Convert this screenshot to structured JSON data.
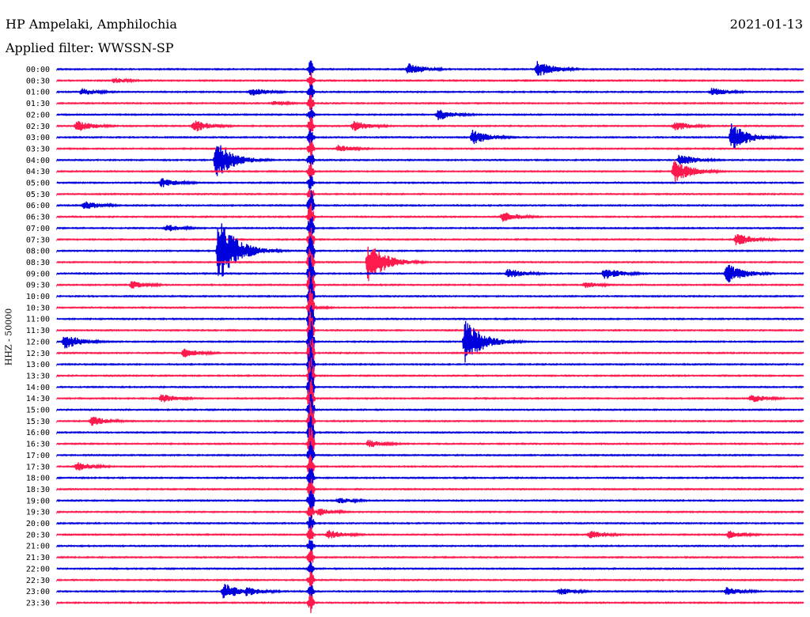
{
  "header": {
    "station": "HP Ampelaki, Amphilochia",
    "filter": "Applied filter: WWSSN-SP",
    "date": "2021-01-13"
  },
  "colors": {
    "blue": "#0000dd",
    "red": "#ff1a4d"
  },
  "chart_data": {
    "type": "line",
    "title": "HP Ampelaki, Amphilochia",
    "ylabel": "HHZ - 50000",
    "y_tick_labels": [
      "00:00",
      "00:30",
      "01:00",
      "01:30",
      "02:00",
      "02:30",
      "03:00",
      "03:30",
      "04:00",
      "04:30",
      "05:00",
      "05:30",
      "06:00",
      "06:30",
      "07:00",
      "07:30",
      "08:00",
      "08:30",
      "09:00",
      "09:30",
      "10:00",
      "10:30",
      "11:00",
      "11:30",
      "12:00",
      "12:30",
      "13:00",
      "13:30",
      "14:00",
      "14:30",
      "15:00",
      "15:30",
      "16:00",
      "16:30",
      "17:00",
      "17:30",
      "18:00",
      "18:30",
      "19:00",
      "19:30",
      "20:00",
      "20:30",
      "21:00",
      "21:30",
      "22:00",
      "22:30",
      "23:00",
      "23:30"
    ],
    "trace_colors": [
      "blue",
      "red"
    ],
    "x_range_minutes": [
      0,
      30
    ],
    "events": [
      {
        "row": 0,
        "t": 14.1,
        "amp": 0.8
      },
      {
        "row": 0,
        "t": 19.3,
        "amp": 1.0
      },
      {
        "row": 1,
        "t": 2.3,
        "amp": 0.35
      },
      {
        "row": 2,
        "t": 1.0,
        "amp": 0.45
      },
      {
        "row": 2,
        "t": 7.8,
        "amp": 0.5
      },
      {
        "row": 2,
        "t": 26.3,
        "amp": 0.55
      },
      {
        "row": 3,
        "t": 8.7,
        "amp": 0.3
      },
      {
        "row": 4,
        "t": 15.3,
        "amp": 0.7
      },
      {
        "row": 5,
        "t": 0.8,
        "amp": 0.7
      },
      {
        "row": 5,
        "t": 5.5,
        "amp": 0.75
      },
      {
        "row": 5,
        "t": 11.9,
        "amp": 0.65
      },
      {
        "row": 5,
        "t": 24.8,
        "amp": 0.6
      },
      {
        "row": 6,
        "t": 16.7,
        "amp": 0.9
      },
      {
        "row": 6,
        "t": 27.1,
        "amp": 1.6
      },
      {
        "row": 7,
        "t": 11.3,
        "amp": 0.45
      },
      {
        "row": 8,
        "t": 6.4,
        "amp": 2.2
      },
      {
        "row": 8,
        "t": 25.0,
        "amp": 0.75
      },
      {
        "row": 9,
        "t": 24.8,
        "amp": 1.4
      },
      {
        "row": 10,
        "t": 4.2,
        "amp": 0.6
      },
      {
        "row": 12,
        "t": 1.1,
        "amp": 0.55
      },
      {
        "row": 13,
        "t": 17.9,
        "amp": 0.65
      },
      {
        "row": 14,
        "t": 4.4,
        "amp": 0.45
      },
      {
        "row": 15,
        "t": 27.3,
        "amp": 0.8
      },
      {
        "row": 16,
        "t": 6.5,
        "amp": 4.0
      },
      {
        "row": 17,
        "t": 12.5,
        "amp": 2.4
      },
      {
        "row": 18,
        "t": 18.1,
        "amp": 0.65
      },
      {
        "row": 18,
        "t": 22.0,
        "amp": 0.75
      },
      {
        "row": 18,
        "t": 26.9,
        "amp": 1.2
      },
      {
        "row": 19,
        "t": 3.0,
        "amp": 0.5
      },
      {
        "row": 19,
        "t": 21.2,
        "amp": 0.4
      },
      {
        "row": 21,
        "t": 10.1,
        "amp": 0.3
      },
      {
        "row": 24,
        "t": 0.3,
        "amp": 1.0
      },
      {
        "row": 24,
        "t": 16.4,
        "amp": 2.6
      },
      {
        "row": 25,
        "t": 5.1,
        "amp": 0.55
      },
      {
        "row": 29,
        "t": 4.2,
        "amp": 0.55
      },
      {
        "row": 29,
        "t": 27.9,
        "amp": 0.5
      },
      {
        "row": 31,
        "t": 1.4,
        "amp": 0.6
      },
      {
        "row": 33,
        "t": 12.5,
        "amp": 0.5
      },
      {
        "row": 35,
        "t": 0.8,
        "amp": 0.55
      },
      {
        "row": 38,
        "t": 11.3,
        "amp": 0.4
      },
      {
        "row": 39,
        "t": 10.5,
        "amp": 0.5
      },
      {
        "row": 41,
        "t": 10.9,
        "amp": 0.55
      },
      {
        "row": 41,
        "t": 21.4,
        "amp": 0.5
      },
      {
        "row": 41,
        "t": 27.0,
        "amp": 0.5
      },
      {
        "row": 46,
        "t": 6.7,
        "amp": 1.0
      },
      {
        "row": 46,
        "t": 7.6,
        "amp": 0.6
      },
      {
        "row": 46,
        "t": 20.2,
        "amp": 0.45
      },
      {
        "row": 46,
        "t": 26.9,
        "amp": 0.5
      }
    ],
    "continuous_large_signal_t": 10.2
  }
}
